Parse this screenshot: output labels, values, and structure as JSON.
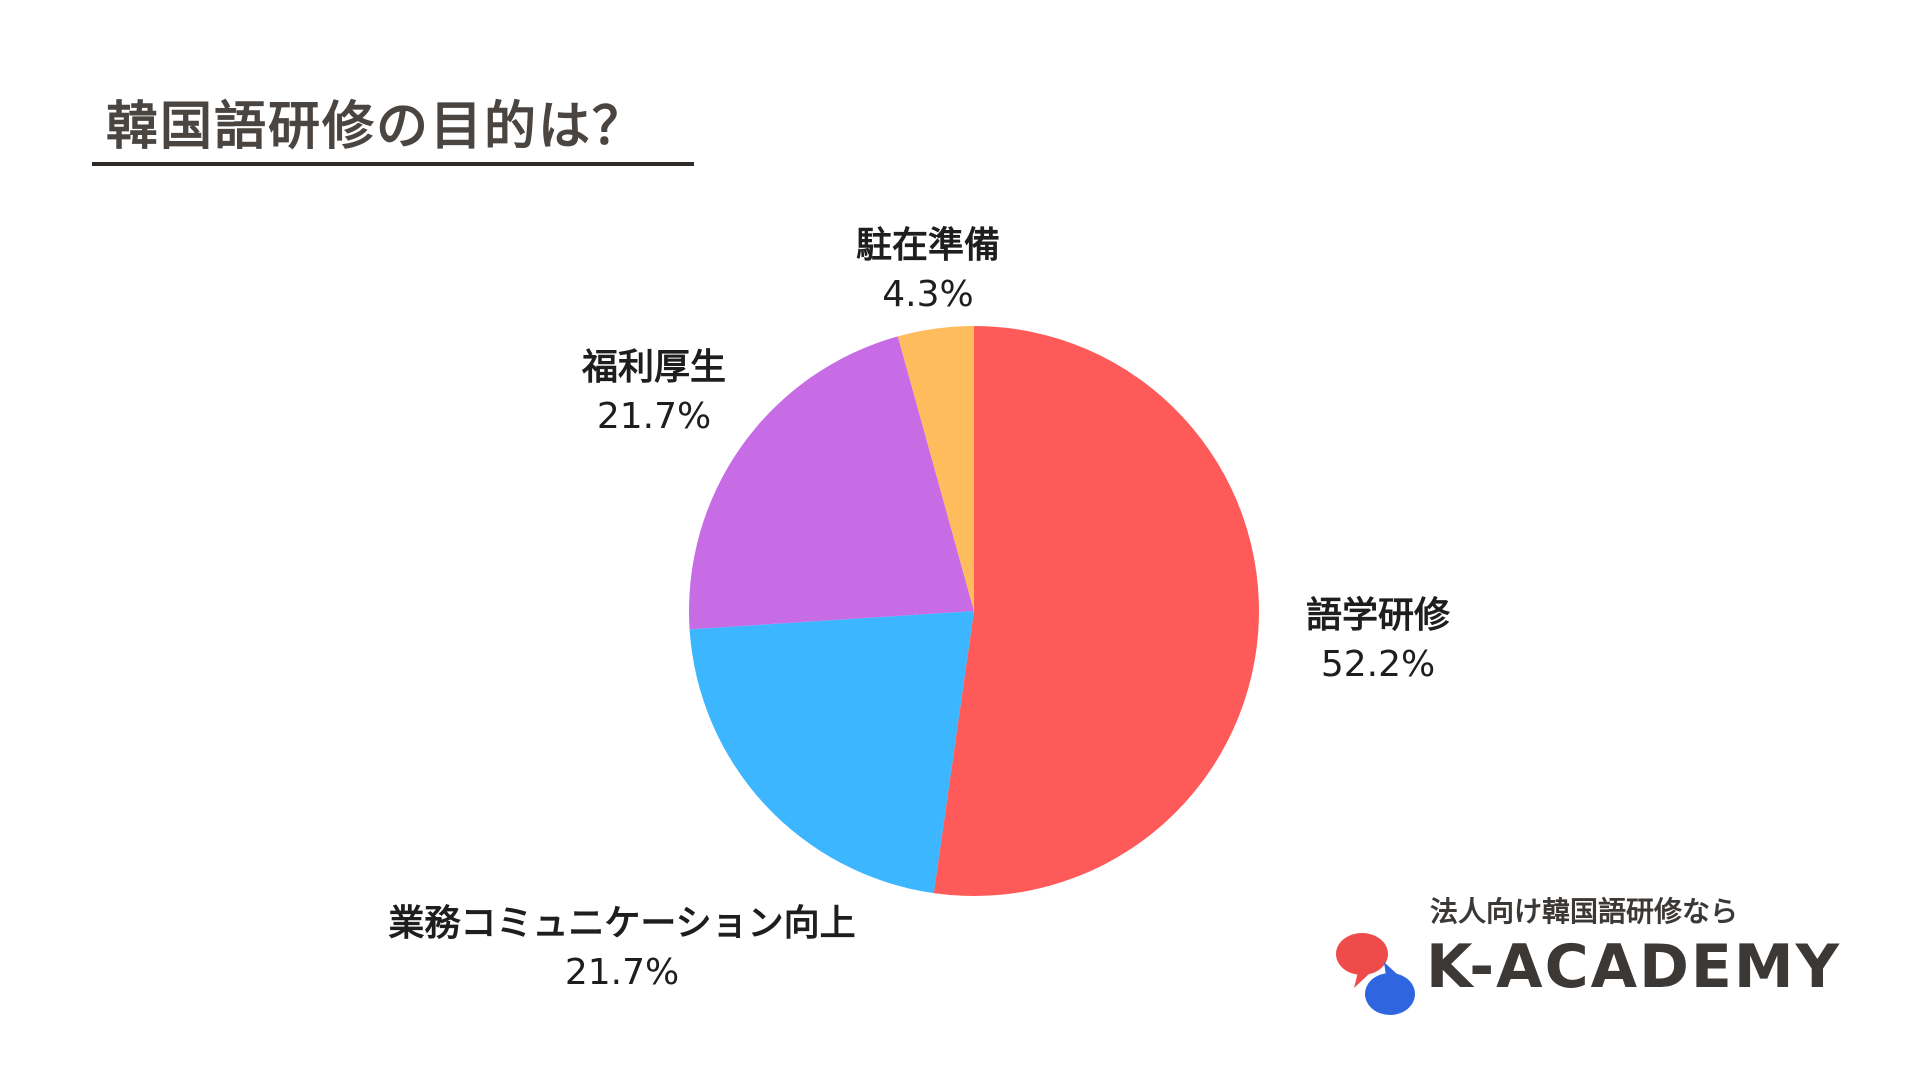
{
  "title": "韓国語研修の目的は？",
  "chart_data": {
    "type": "pie",
    "title": "韓国語研修の目的は？",
    "slices": [
      {
        "label": "語学研修",
        "value": 52.2,
        "value_label": "52.2%",
        "color": "#ff5a5a"
      },
      {
        "label": "業務コミュニケーション向上",
        "value": 21.7,
        "value_label": "21.7%",
        "color": "#3cb6ff"
      },
      {
        "label": "福利厚生",
        "value": 21.7,
        "value_label": "21.7%",
        "color": "#c86ce6"
      },
      {
        "label": "駐在準備",
        "value": 4.3,
        "value_label": "4.3%",
        "color": "#ffbc5c"
      }
    ],
    "start": "12 o'clock",
    "direction": "clockwise"
  },
  "logo": {
    "tagline": "法人向け韓国語研修なら",
    "name": "K-ACADEMY",
    "icon": "speech-bubbles-icon",
    "colors": {
      "red": "#ef4b4b",
      "blue": "#2f66e0",
      "text": "#3b3836"
    }
  }
}
